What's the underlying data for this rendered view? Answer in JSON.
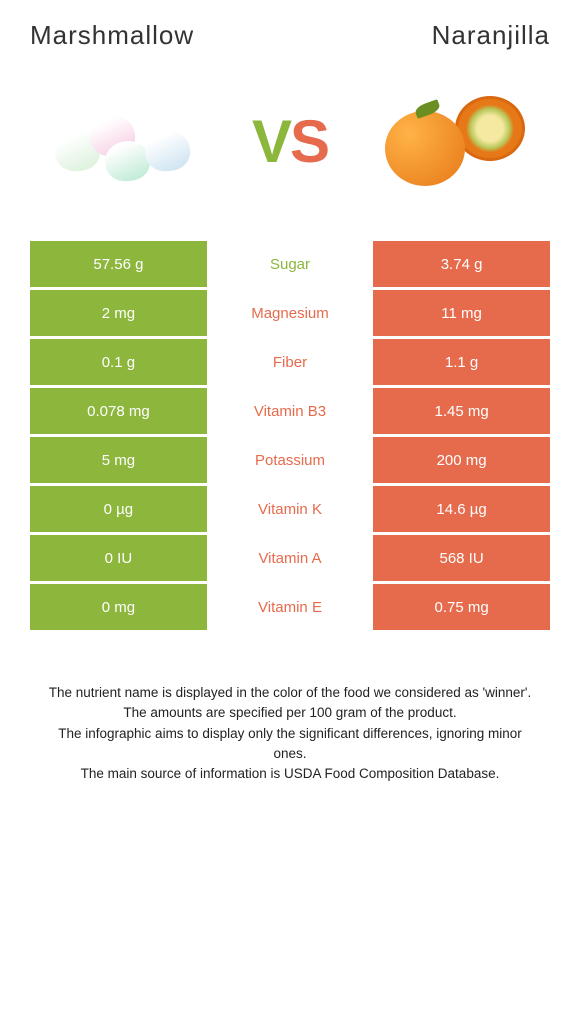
{
  "titles": {
    "left": "Marshmallow",
    "right": "Naranjilla"
  },
  "vs": {
    "v": "V",
    "s": "S"
  },
  "colors": {
    "left_bg": "#8cb63c",
    "right_bg": "#e66b4c",
    "left_text": "#8cb63c",
    "right_text": "#e66b4c"
  },
  "rows": [
    {
      "left": "57.56 g",
      "label": "Sugar",
      "right": "3.74 g",
      "winner": "left"
    },
    {
      "left": "2 mg",
      "label": "Magnesium",
      "right": "11 mg",
      "winner": "right"
    },
    {
      "left": "0.1 g",
      "label": "Fiber",
      "right": "1.1 g",
      "winner": "right"
    },
    {
      "left": "0.078 mg",
      "label": "Vitamin B3",
      "right": "1.45 mg",
      "winner": "right"
    },
    {
      "left": "5 mg",
      "label": "Potassium",
      "right": "200 mg",
      "winner": "right"
    },
    {
      "left": "0 µg",
      "label": "Vitamin K",
      "right": "14.6 µg",
      "winner": "right"
    },
    {
      "left": "0 IU",
      "label": "Vitamin A",
      "right": "568 IU",
      "winner": "right"
    },
    {
      "left": "0 mg",
      "label": "Vitamin E",
      "right": "0.75 mg",
      "winner": "right"
    }
  ],
  "footer": {
    "l1": "The nutrient name is displayed in the color of the food we considered as 'winner'.",
    "l2": "The amounts are specified per 100 gram of the product.",
    "l3": "The infographic aims to display only the significant differences, ignoring minor ones.",
    "l4": "The main source of information is USDA Food Composition Database."
  }
}
